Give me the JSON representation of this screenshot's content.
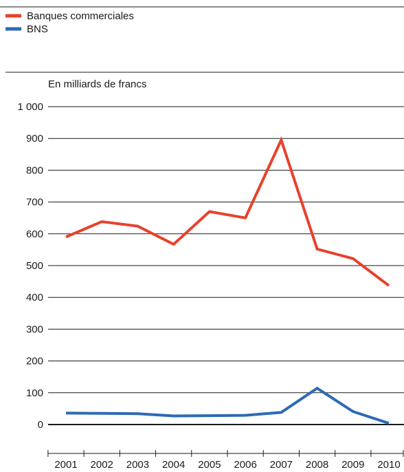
{
  "chart_data": {
    "type": "line",
    "ylabel": "En milliards de francs",
    "ylim": [
      0,
      1000
    ],
    "yticks": [
      "0",
      "100",
      "200",
      "300",
      "400",
      "500",
      "600",
      "700",
      "800",
      "900",
      "1 000"
    ],
    "categories": [
      "2001",
      "2002",
      "2003",
      "2004",
      "2005",
      "2006",
      "2007",
      "2008",
      "2009",
      "2010"
    ],
    "series": [
      {
        "name": "Banques commerciales",
        "color": "#e8412c",
        "values": [
          590,
          638,
          624,
          567,
          670,
          650,
          895,
          552,
          522,
          437
        ]
      },
      {
        "name": "BNS",
        "color": "#2d6ab4",
        "values": [
          36,
          35,
          34,
          27,
          28,
          29,
          38,
          114,
          41,
          4
        ]
      }
    ],
    "legend_position": "top-left",
    "grid": true
  }
}
